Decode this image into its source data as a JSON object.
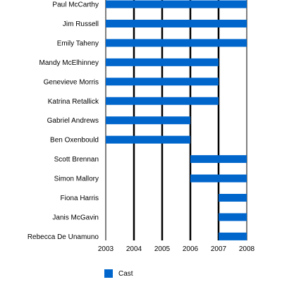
{
  "chart_data": {
    "type": "bar",
    "orientation": "horizontal",
    "xlim": [
      2003,
      2008
    ],
    "x_ticks": [
      "2003",
      "2004",
      "2005",
      "2006",
      "2007",
      "2008"
    ],
    "grid": "vertical lines at each year",
    "legend_position": "bottom-left",
    "series": [
      {
        "name": "Cast",
        "color": "#0066CC",
        "bars": [
          {
            "label": "Paul McCarthy",
            "start": 2003,
            "end": 2008
          },
          {
            "label": "Jim Russell",
            "start": 2003,
            "end": 2008
          },
          {
            "label": "Emily Taheny",
            "start": 2003,
            "end": 2008
          },
          {
            "label": "Mandy McElhinney",
            "start": 2003,
            "end": 2007
          },
          {
            "label": "Genevieve Morris",
            "start": 2003,
            "end": 2007
          },
          {
            "label": "Katrina Retallick",
            "start": 2003,
            "end": 2007
          },
          {
            "label": "Gabriel Andrews",
            "start": 2003,
            "end": 2006
          },
          {
            "label": "Ben Oxenbould",
            "start": 2003,
            "end": 2006
          },
          {
            "label": "Scott Brennan",
            "start": 2006,
            "end": 2008
          },
          {
            "label": "Simon Mallory",
            "start": 2006,
            "end": 2008
          },
          {
            "label": "Fiona Harris",
            "start": 2007,
            "end": 2008
          },
          {
            "label": "Janis McGavin",
            "start": 2007,
            "end": 2008
          },
          {
            "label": "Rebecca De Unamuno",
            "start": 2007,
            "end": 2008
          }
        ]
      }
    ]
  },
  "legend": {
    "label": "Cast",
    "color": "#0066CC"
  }
}
